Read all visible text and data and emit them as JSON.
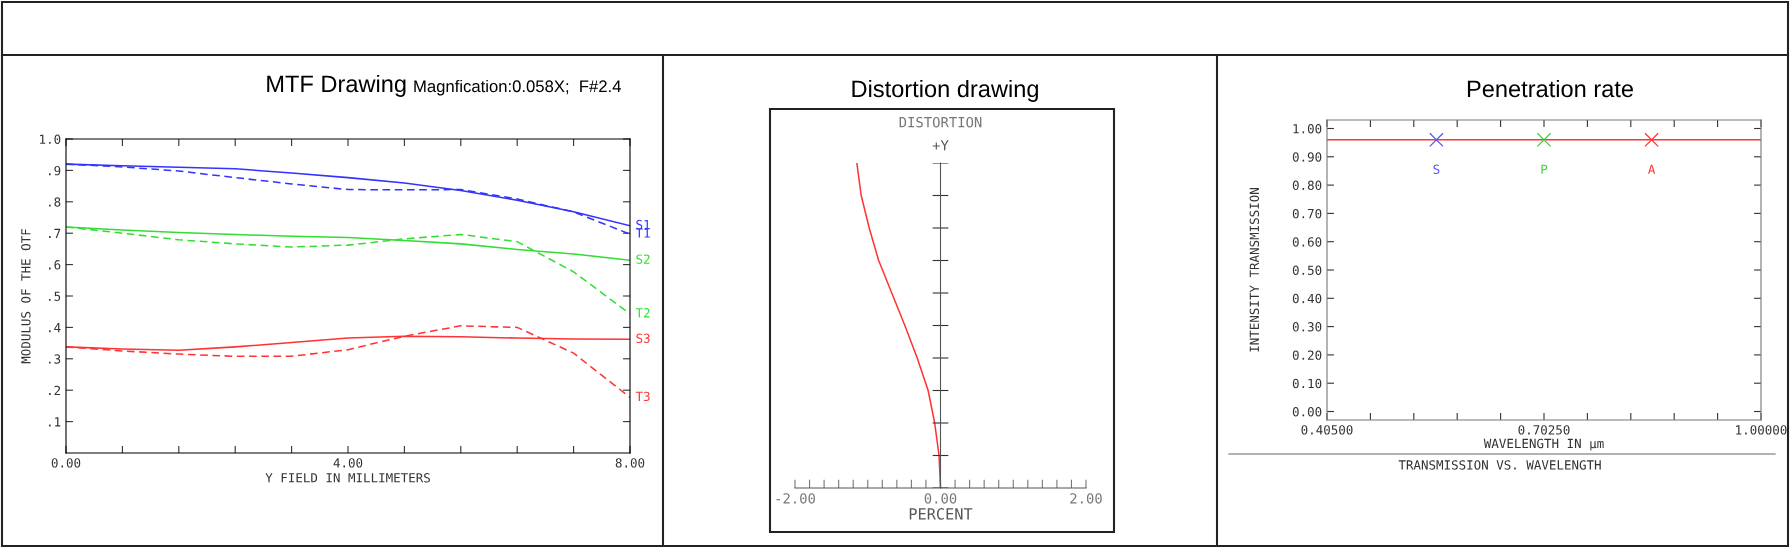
{
  "chart_data": [
    {
      "type": "line",
      "title": "MTF Drawing",
      "subtitle": "Magnfication:0.058X;  F#2.4",
      "xlabel": "Y FIELD IN MILLIMETERS",
      "ylabel": "MODULUS OF THE OTF",
      "x": [
        0,
        0.8,
        1.6,
        2.4,
        3.2,
        4.0,
        4.8,
        5.6,
        6.4,
        7.2,
        8.0
      ],
      "series": [
        {
          "name": "S1",
          "color": "#3333ff",
          "line_style": "solid",
          "values": [
            0.92,
            0.915,
            0.91,
            0.905,
            0.892,
            0.877,
            0.86,
            0.836,
            0.805,
            0.768,
            0.724
          ]
        },
        {
          "name": "T1",
          "color": "#3333ff",
          "line_style": "dashed",
          "values": [
            0.92,
            0.911,
            0.898,
            0.877,
            0.857,
            0.839,
            0.838,
            0.839,
            0.809,
            0.768,
            0.697
          ]
        },
        {
          "name": "S2",
          "color": "#33dd33",
          "line_style": "solid",
          "values": [
            0.72,
            0.71,
            0.702,
            0.696,
            0.69,
            0.686,
            0.677,
            0.666,
            0.648,
            0.634,
            0.614
          ]
        },
        {
          "name": "T2",
          "color": "#33dd33",
          "line_style": "dashed",
          "values": [
            0.72,
            0.7,
            0.679,
            0.666,
            0.656,
            0.662,
            0.682,
            0.696,
            0.673,
            0.577,
            0.443
          ]
        },
        {
          "name": "S3",
          "color": "#ff3333",
          "line_style": "solid",
          "values": [
            0.338,
            0.331,
            0.327,
            0.338,
            0.352,
            0.366,
            0.372,
            0.37,
            0.366,
            0.363,
            0.362
          ]
        },
        {
          "name": "T3",
          "color": "#ff3333",
          "line_style": "dashed",
          "values": [
            0.338,
            0.325,
            0.315,
            0.308,
            0.308,
            0.329,
            0.372,
            0.405,
            0.4,
            0.318,
            0.177
          ]
        }
      ],
      "xlim": [
        0,
        8.0
      ],
      "xticks": [
        {
          "value": 0,
          "label": "0.00"
        },
        {
          "value": 0.8,
          "label": null
        },
        {
          "value": 1.6,
          "label": null
        },
        {
          "value": 2.4,
          "label": null
        },
        {
          "value": 3.2,
          "label": null
        },
        {
          "value": 4.0,
          "label": "4.00"
        },
        {
          "value": 4.8,
          "label": null
        },
        {
          "value": 5.6,
          "label": null
        },
        {
          "value": 6.4,
          "label": null
        },
        {
          "value": 7.2,
          "label": null
        },
        {
          "value": 8.0,
          "label": "8.00"
        }
      ],
      "ylim": [
        0,
        1.0
      ],
      "yticks": [
        {
          "value": 0.1,
          "label": ".1"
        },
        {
          "value": 0.2,
          "label": ".2"
        },
        {
          "value": 0.3,
          "label": ".3"
        },
        {
          "value": 0.4,
          "label": ".4"
        },
        {
          "value": 0.5,
          "label": ".5"
        },
        {
          "value": 0.6,
          "label": ".6"
        },
        {
          "value": 0.7,
          "label": ".7"
        },
        {
          "value": 0.8,
          "label": ".8"
        },
        {
          "value": 0.9,
          "label": ".9"
        },
        {
          "value": 1.0,
          "label": "1.0"
        }
      ]
    },
    {
      "type": "line",
      "orientation": "horizontal",
      "title": "Distortion drawing",
      "subtitle": "DISTORTION",
      "xlabel": "PERCENT",
      "ylabel": "+Y",
      "categories": [
        null,
        null,
        null,
        null,
        null,
        null,
        null,
        null,
        null,
        null,
        null
      ],
      "series": [
        {
          "color": "#ff3333",
          "values": [
            -1.15,
            -1.09,
            -0.98,
            -0.85,
            -0.67,
            -0.49,
            -0.32,
            -0.17,
            -0.08,
            -0.02,
            0
          ]
        }
      ],
      "xlim": [
        -2.0,
        2.0
      ],
      "xticks": [
        {
          "value": -2.0,
          "label": "-2.00"
        },
        {
          "value": -1.8,
          "label": null
        },
        {
          "value": -1.6,
          "label": null
        },
        {
          "value": -1.4,
          "label": null
        },
        {
          "value": -1.2,
          "label": null
        },
        {
          "value": -1.0,
          "label": null
        },
        {
          "value": -0.8,
          "label": null
        },
        {
          "value": -0.6,
          "label": null
        },
        {
          "value": -0.4,
          "label": null
        },
        {
          "value": -0.2,
          "label": null
        },
        {
          "value": 0,
          "label": "0.00"
        },
        {
          "value": 0.2,
          "label": null
        },
        {
          "value": 0.4,
          "label": null
        },
        {
          "value": 0.6,
          "label": null
        },
        {
          "value": 0.8,
          "label": null
        },
        {
          "value": 1.0,
          "label": null
        },
        {
          "value": 1.2,
          "label": null
        },
        {
          "value": 1.4,
          "label": null
        },
        {
          "value": 1.6,
          "label": null
        },
        {
          "value": 1.8,
          "label": null
        },
        {
          "value": 2.0,
          "label": "2.00"
        }
      ]
    },
    {
      "type": "line",
      "title": "Penetration rate",
      "xlabel": "WAVELENGTH IN µm",
      "ylabel": "INTENSITY TRANSMISSION",
      "annotations": [
        "TRANSMISSION VS. WAVELENGTH"
      ],
      "series": [
        {
          "type": "line",
          "color": "#ff3333",
          "x": [
            0.405,
            1.0
          ],
          "values": [
            0.96,
            0.96
          ]
        },
        {
          "type": "scatter",
          "name": "S",
          "color": "#5555ff",
          "marker": "cross",
          "x": [
            0.555
          ],
          "values": [
            0.96
          ]
        },
        {
          "type": "scatter",
          "name": "P",
          "color": "#44cc44",
          "marker": "cross",
          "x": [
            0.7025
          ],
          "values": [
            0.96
          ]
        },
        {
          "type": "scatter",
          "name": "A",
          "color": "#ff3333",
          "marker": "cross",
          "x": [
            0.85
          ],
          "values": [
            0.96
          ]
        }
      ],
      "xlim": [
        0.405,
        1.0
      ],
      "xticks": [
        {
          "value": 0.405,
          "label": "0.40500"
        },
        {
          "value": 0.4645,
          "label": null
        },
        {
          "value": 0.524,
          "label": null
        },
        {
          "value": 0.5835,
          "label": null
        },
        {
          "value": 0.643,
          "label": null
        },
        {
          "value": 0.7025,
          "label": "0.70250"
        },
        {
          "value": 0.762,
          "label": null
        },
        {
          "value": 0.8215,
          "label": null
        },
        {
          "value": 0.881,
          "label": null
        },
        {
          "value": 0.9405,
          "label": null
        },
        {
          "value": 1.0,
          "label": "1.00000"
        }
      ],
      "ylim": [
        -0.03,
        1.03
      ],
      "yticks": [
        {
          "value": 0,
          "label": "0.00"
        },
        {
          "value": 0.1,
          "label": "0.10"
        },
        {
          "value": 0.2,
          "label": "0.20"
        },
        {
          "value": 0.3,
          "label": "0.30"
        },
        {
          "value": 0.4,
          "label": "0.40"
        },
        {
          "value": 0.5,
          "label": "0.50"
        },
        {
          "value": 0.6,
          "label": "0.60"
        },
        {
          "value": 0.7,
          "label": "0.70"
        },
        {
          "value": 0.8,
          "label": "0.80"
        },
        {
          "value": 0.9,
          "label": "0.90"
        },
        {
          "value": 1.0,
          "label": "1.00"
        }
      ]
    }
  ]
}
